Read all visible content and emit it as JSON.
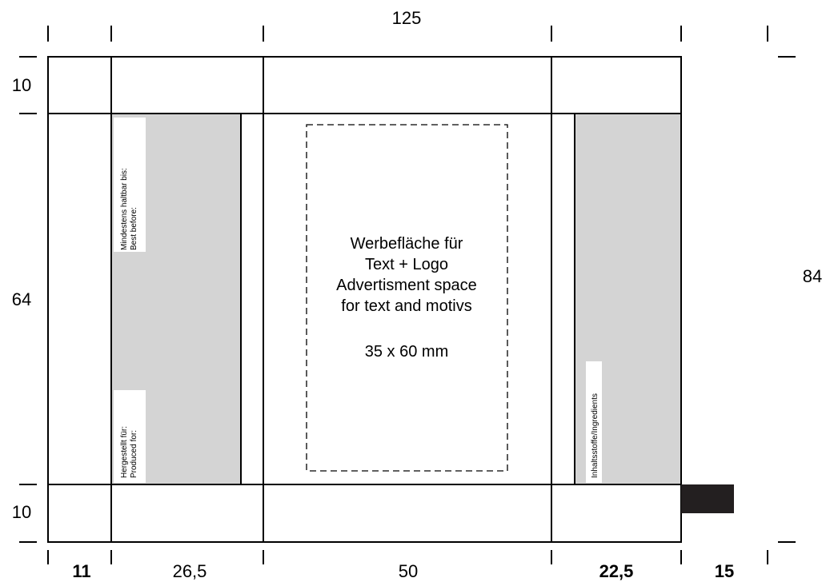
{
  "dimensions": {
    "top_total": "125",
    "right_total": "84",
    "left_top": "10",
    "left_middle": "64",
    "left_bottom": "10",
    "bottom": [
      "11",
      "26,5",
      "50",
      "22,5",
      "15"
    ]
  },
  "advertisement_box": {
    "lines": [
      "Werbefläche für",
      "Text + Logo",
      "Advertisment space",
      "for text and motivs"
    ],
    "size": "35 x 60 mm"
  },
  "panel_labels": {
    "best_before": [
      "Mindestens haltbar bis:",
      "Best before:"
    ],
    "produced_for": [
      "Hergestellt für:",
      "Produced for:"
    ],
    "ingredients": "Inhaltsstoffe/Ingredients"
  },
  "colors": {
    "line": "#000000",
    "panel_fill": "#d4d4d4",
    "tab_fill": "#231f20"
  }
}
